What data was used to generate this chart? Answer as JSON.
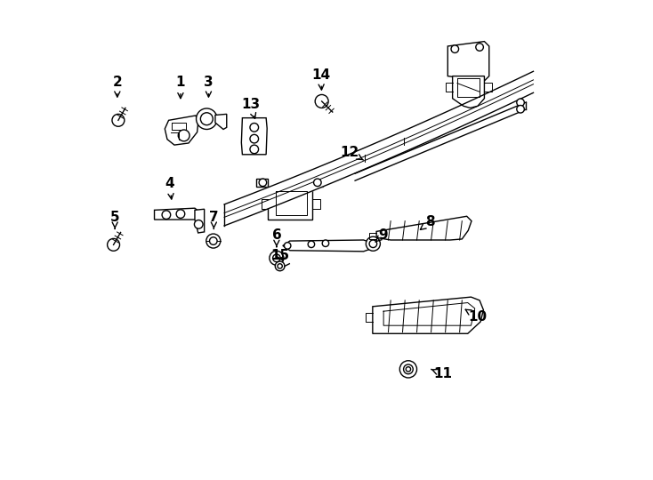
{
  "bg_color": "#ffffff",
  "line_color": "#000000",
  "figsize": [
    7.34,
    5.4
  ],
  "dpi": 100,
  "label_positions": {
    "1": [
      0.193,
      0.832,
      0.193,
      0.79
    ],
    "2": [
      0.06,
      0.832,
      0.06,
      0.793
    ],
    "3": [
      0.252,
      0.832,
      0.252,
      0.793
    ],
    "4": [
      0.17,
      0.618,
      0.175,
      0.578
    ],
    "5": [
      0.055,
      0.548,
      0.055,
      0.518
    ],
    "6": [
      0.395,
      0.51,
      0.395,
      0.48
    ],
    "7": [
      0.263,
      0.548,
      0.263,
      0.518
    ],
    "8": [
      0.718,
      0.538,
      0.695,
      0.52
    ],
    "9": [
      0.618,
      0.51,
      0.602,
      0.495
    ],
    "10": [
      0.818,
      0.338,
      0.79,
      0.355
    ],
    "11": [
      0.745,
      0.218,
      0.72,
      0.228
    ],
    "12": [
      0.548,
      0.685,
      0.578,
      0.668
    ],
    "13": [
      0.34,
      0.785,
      0.352,
      0.748
    ],
    "14": [
      0.488,
      0.848,
      0.49,
      0.808
    ],
    "15": [
      0.402,
      0.468,
      0.412,
      0.45
    ]
  }
}
